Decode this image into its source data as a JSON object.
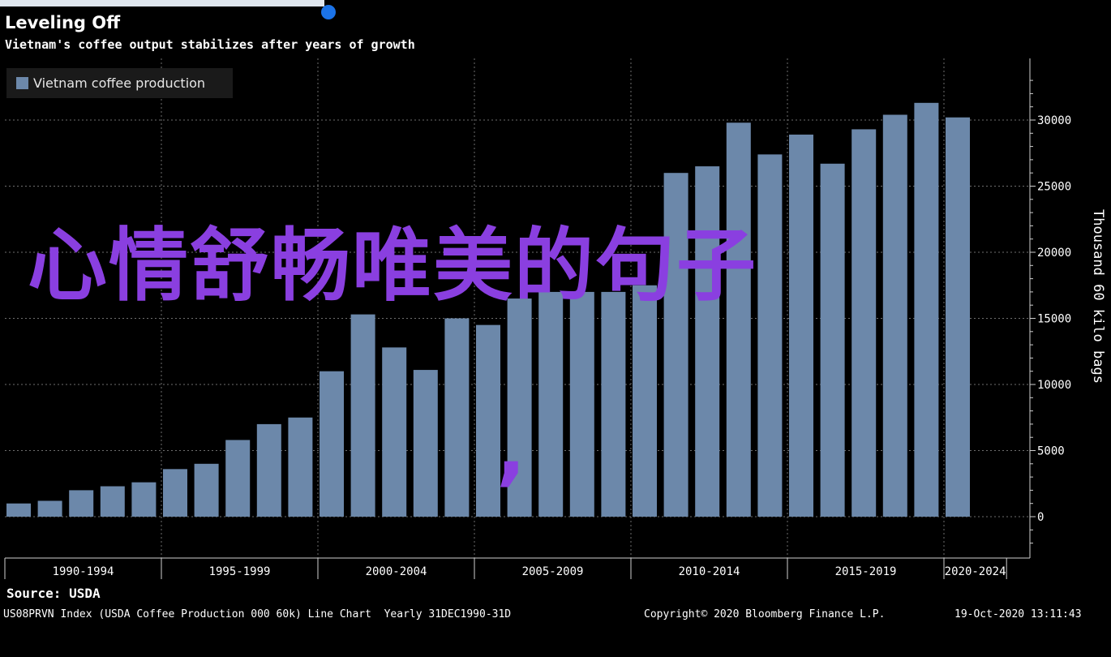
{
  "header": {
    "title": "Leveling Off",
    "subtitle": "Vietnam's coffee output stabilizes after years of growth"
  },
  "overlay": {
    "main_text": "心情舒畅唯美的句子",
    "comma": ","
  },
  "footer": {
    "source": "Source: USDA",
    "index_text": "US08PRVN Index (USDA Coffee Production 000 60k) Line Chart  Yearly 31DEC1990-31D",
    "copyright": "Copyright© 2020 Bloomberg Finance L.P.",
    "timestamp": "19-Oct-2020 13:11:43"
  },
  "colors": {
    "bar": "#6c88aa",
    "overlay": "#8a3fe0",
    "background": "#000000",
    "legend_bg": "#1a1a1a"
  },
  "chart_data": {
    "type": "bar",
    "x": [
      1990,
      1991,
      1992,
      1993,
      1994,
      1995,
      1996,
      1997,
      1998,
      1999,
      2000,
      2001,
      2002,
      2003,
      2004,
      2005,
      2006,
      2007,
      2008,
      2009,
      2010,
      2011,
      2012,
      2013,
      2014,
      2015,
      2016,
      2017,
      2018,
      2019,
      2020,
      2021
    ],
    "series": [
      {
        "name": "Vietnam coffee production",
        "values": [
          1000,
          1200,
          2000,
          2300,
          2600,
          3600,
          4000,
          5800,
          7000,
          7500,
          11000,
          15300,
          12800,
          11100,
          15000,
          14500,
          16500,
          17000,
          17000,
          17000,
          17500,
          26000,
          26500,
          29800,
          27400,
          28900,
          26700,
          29300,
          30400,
          31300,
          30200,
          0
        ]
      }
    ],
    "categories": [
      "1990-1994",
      "1995-1999",
      "2000-2004",
      "2005-2009",
      "2010-2014",
      "2015-2019",
      "2020-2024"
    ],
    "ylabel": "Thousand 60 kilo bags",
    "yticks": [
      0,
      5000,
      10000,
      15000,
      20000,
      25000,
      30000
    ],
    "ylim": [
      -3000,
      34000
    ],
    "grid": true,
    "legend_position": "top-left"
  }
}
